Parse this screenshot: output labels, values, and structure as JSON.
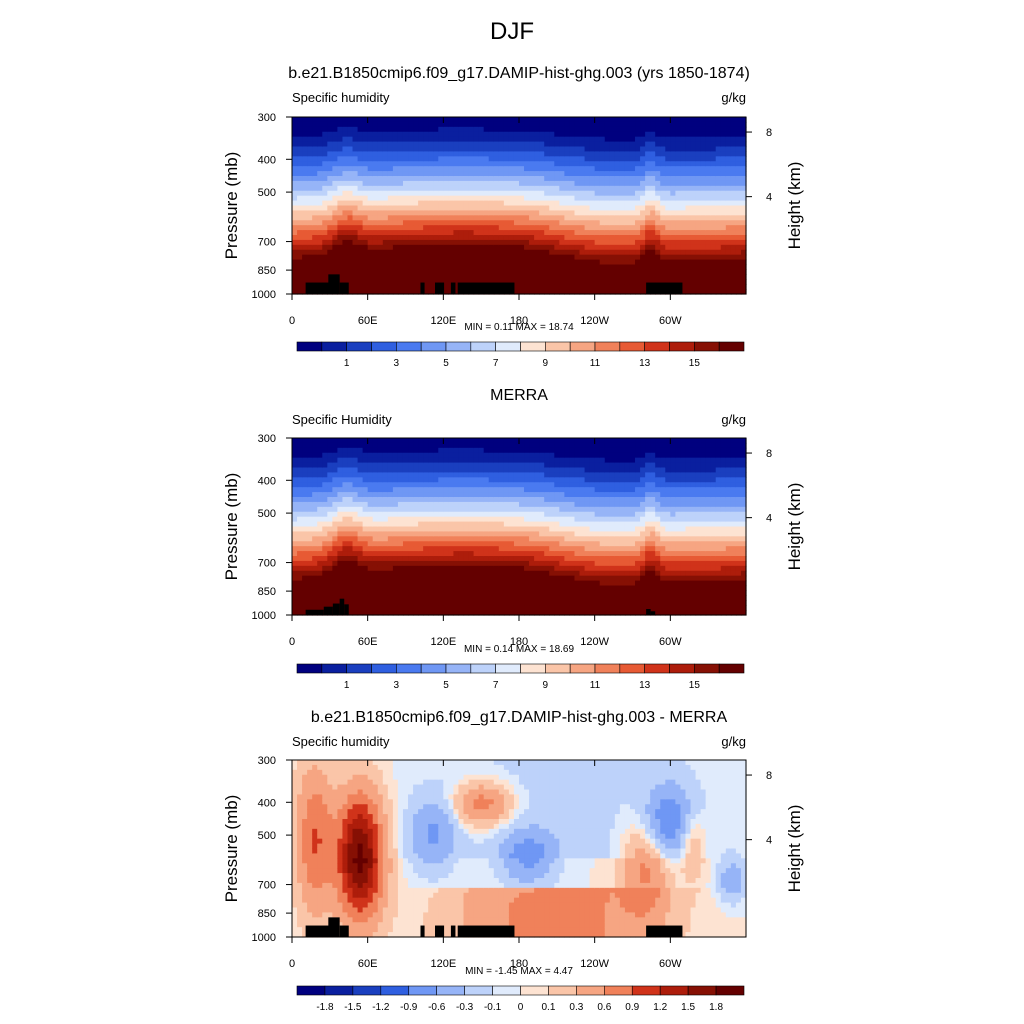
{
  "page": {
    "title": "DJF"
  },
  "chart_data": [
    {
      "type": "heatmap",
      "title": "b.e21.B1850cmip6.f09_g17.DAMIP-hist-ghg.003 (yrs 1850-1874)",
      "subtitle_left": "Specific humidity",
      "units": "g/kg",
      "ylabel": "Pressure (mb)",
      "ylabel_right": "Height (km)",
      "x_ticks": [
        "0",
        "60E",
        "120E",
        "180",
        "120W",
        "60W"
      ],
      "y_ticks": [
        "300",
        "400",
        "500",
        "700",
        "850",
        "1000"
      ],
      "y_right_ticks": [
        "8",
        "4"
      ],
      "min": 0.11,
      "max": 18.74,
      "stats_text": "MIN =   0.11  MAX =  18.74",
      "colorbar_labels": [
        "1",
        "3",
        "5",
        "7",
        "9",
        "11",
        "13",
        "15"
      ],
      "colorbar_levels": [
        0.5,
        1,
        1.5,
        2,
        3,
        4,
        5,
        6,
        7,
        8,
        9,
        10,
        11,
        12,
        13,
        14,
        15
      ]
    },
    {
      "type": "heatmap",
      "title": "MERRA",
      "subtitle_left": "Specific Humidity",
      "units": "g/kg",
      "ylabel": "Pressure (mb)",
      "ylabel_right": "Height (km)",
      "x_ticks": [
        "0",
        "60E",
        "120E",
        "180",
        "120W",
        "60W"
      ],
      "y_ticks": [
        "300",
        "400",
        "500",
        "700",
        "850",
        "1000"
      ],
      "y_right_ticks": [
        "8",
        "4"
      ],
      "min": 0.14,
      "max": 18.69,
      "stats_text": "MIN =   0.14  MAX =  18.69",
      "colorbar_labels": [
        "1",
        "3",
        "5",
        "7",
        "9",
        "11",
        "13",
        "15"
      ],
      "colorbar_levels": [
        0.5,
        1,
        1.5,
        2,
        3,
        4,
        5,
        6,
        7,
        8,
        9,
        10,
        11,
        12,
        13,
        14,
        15
      ]
    },
    {
      "type": "heatmap",
      "title": "b.e21.B1850cmip6.f09_g17.DAMIP-hist-ghg.003 - MERRA",
      "subtitle_left": "Specific humidity",
      "units": "g/kg",
      "ylabel": "Pressure (mb)",
      "ylabel_right": "Height (km)",
      "x_ticks": [
        "0",
        "60E",
        "120E",
        "180",
        "120W",
        "60W"
      ],
      "y_ticks": [
        "300",
        "400",
        "500",
        "700",
        "850",
        "1000"
      ],
      "y_right_ticks": [
        "8",
        "4"
      ],
      "min": -1.45,
      "max": 4.47,
      "stats_text": "MIN =  -1.45  MAX =   4.47",
      "colorbar_labels": [
        "-1.8",
        "-1.5",
        "-1.2",
        "-0.9",
        "-0.6",
        "-0.3",
        "-0.1",
        "0",
        "0.1",
        "0.3",
        "0.6",
        "0.9",
        "1.2",
        "1.5",
        "1.8"
      ],
      "colorbar_levels": [
        -1.8,
        -1.5,
        -1.2,
        -0.9,
        -0.6,
        -0.3,
        -0.1,
        0,
        0.1,
        0.3,
        0.6,
        0.9,
        1.2,
        1.5,
        1.8
      ]
    }
  ],
  "colors": {
    "palette": [
      "#00007f",
      "#0a1f9f",
      "#1a3fbf",
      "#2f5fe0",
      "#4a7af0",
      "#6f97f4",
      "#96b4f7",
      "#bdd2fa",
      "#e0ebfc",
      "#fde3d2",
      "#fac5a8",
      "#f6a582",
      "#f0815a",
      "#e75a34",
      "#d0331a",
      "#ad1d0b",
      "#861004",
      "#640000"
    ],
    "topography": "#000000"
  }
}
